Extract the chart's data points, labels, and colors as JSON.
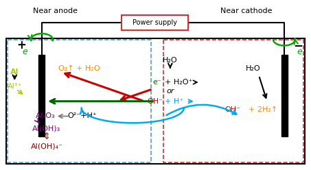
{
  "fig_width": 4.53,
  "fig_height": 2.48,
  "dpi": 100,
  "title_near_anode": "Near anode",
  "title_near_cathode": "Near cathode",
  "power_supply_label": "Power supply",
  "colors": {
    "green": "#00aa00",
    "dark_green": "#006600",
    "red": "#cc0000",
    "light_blue": "#00aaee",
    "orange": "#ff8800",
    "yellow_green": "#aacc00",
    "purple": "#9900bb",
    "dark_red": "#880000",
    "gray": "#777777",
    "black": "#000000",
    "blue_box": "#5599cc",
    "red_box": "#cc3333"
  }
}
